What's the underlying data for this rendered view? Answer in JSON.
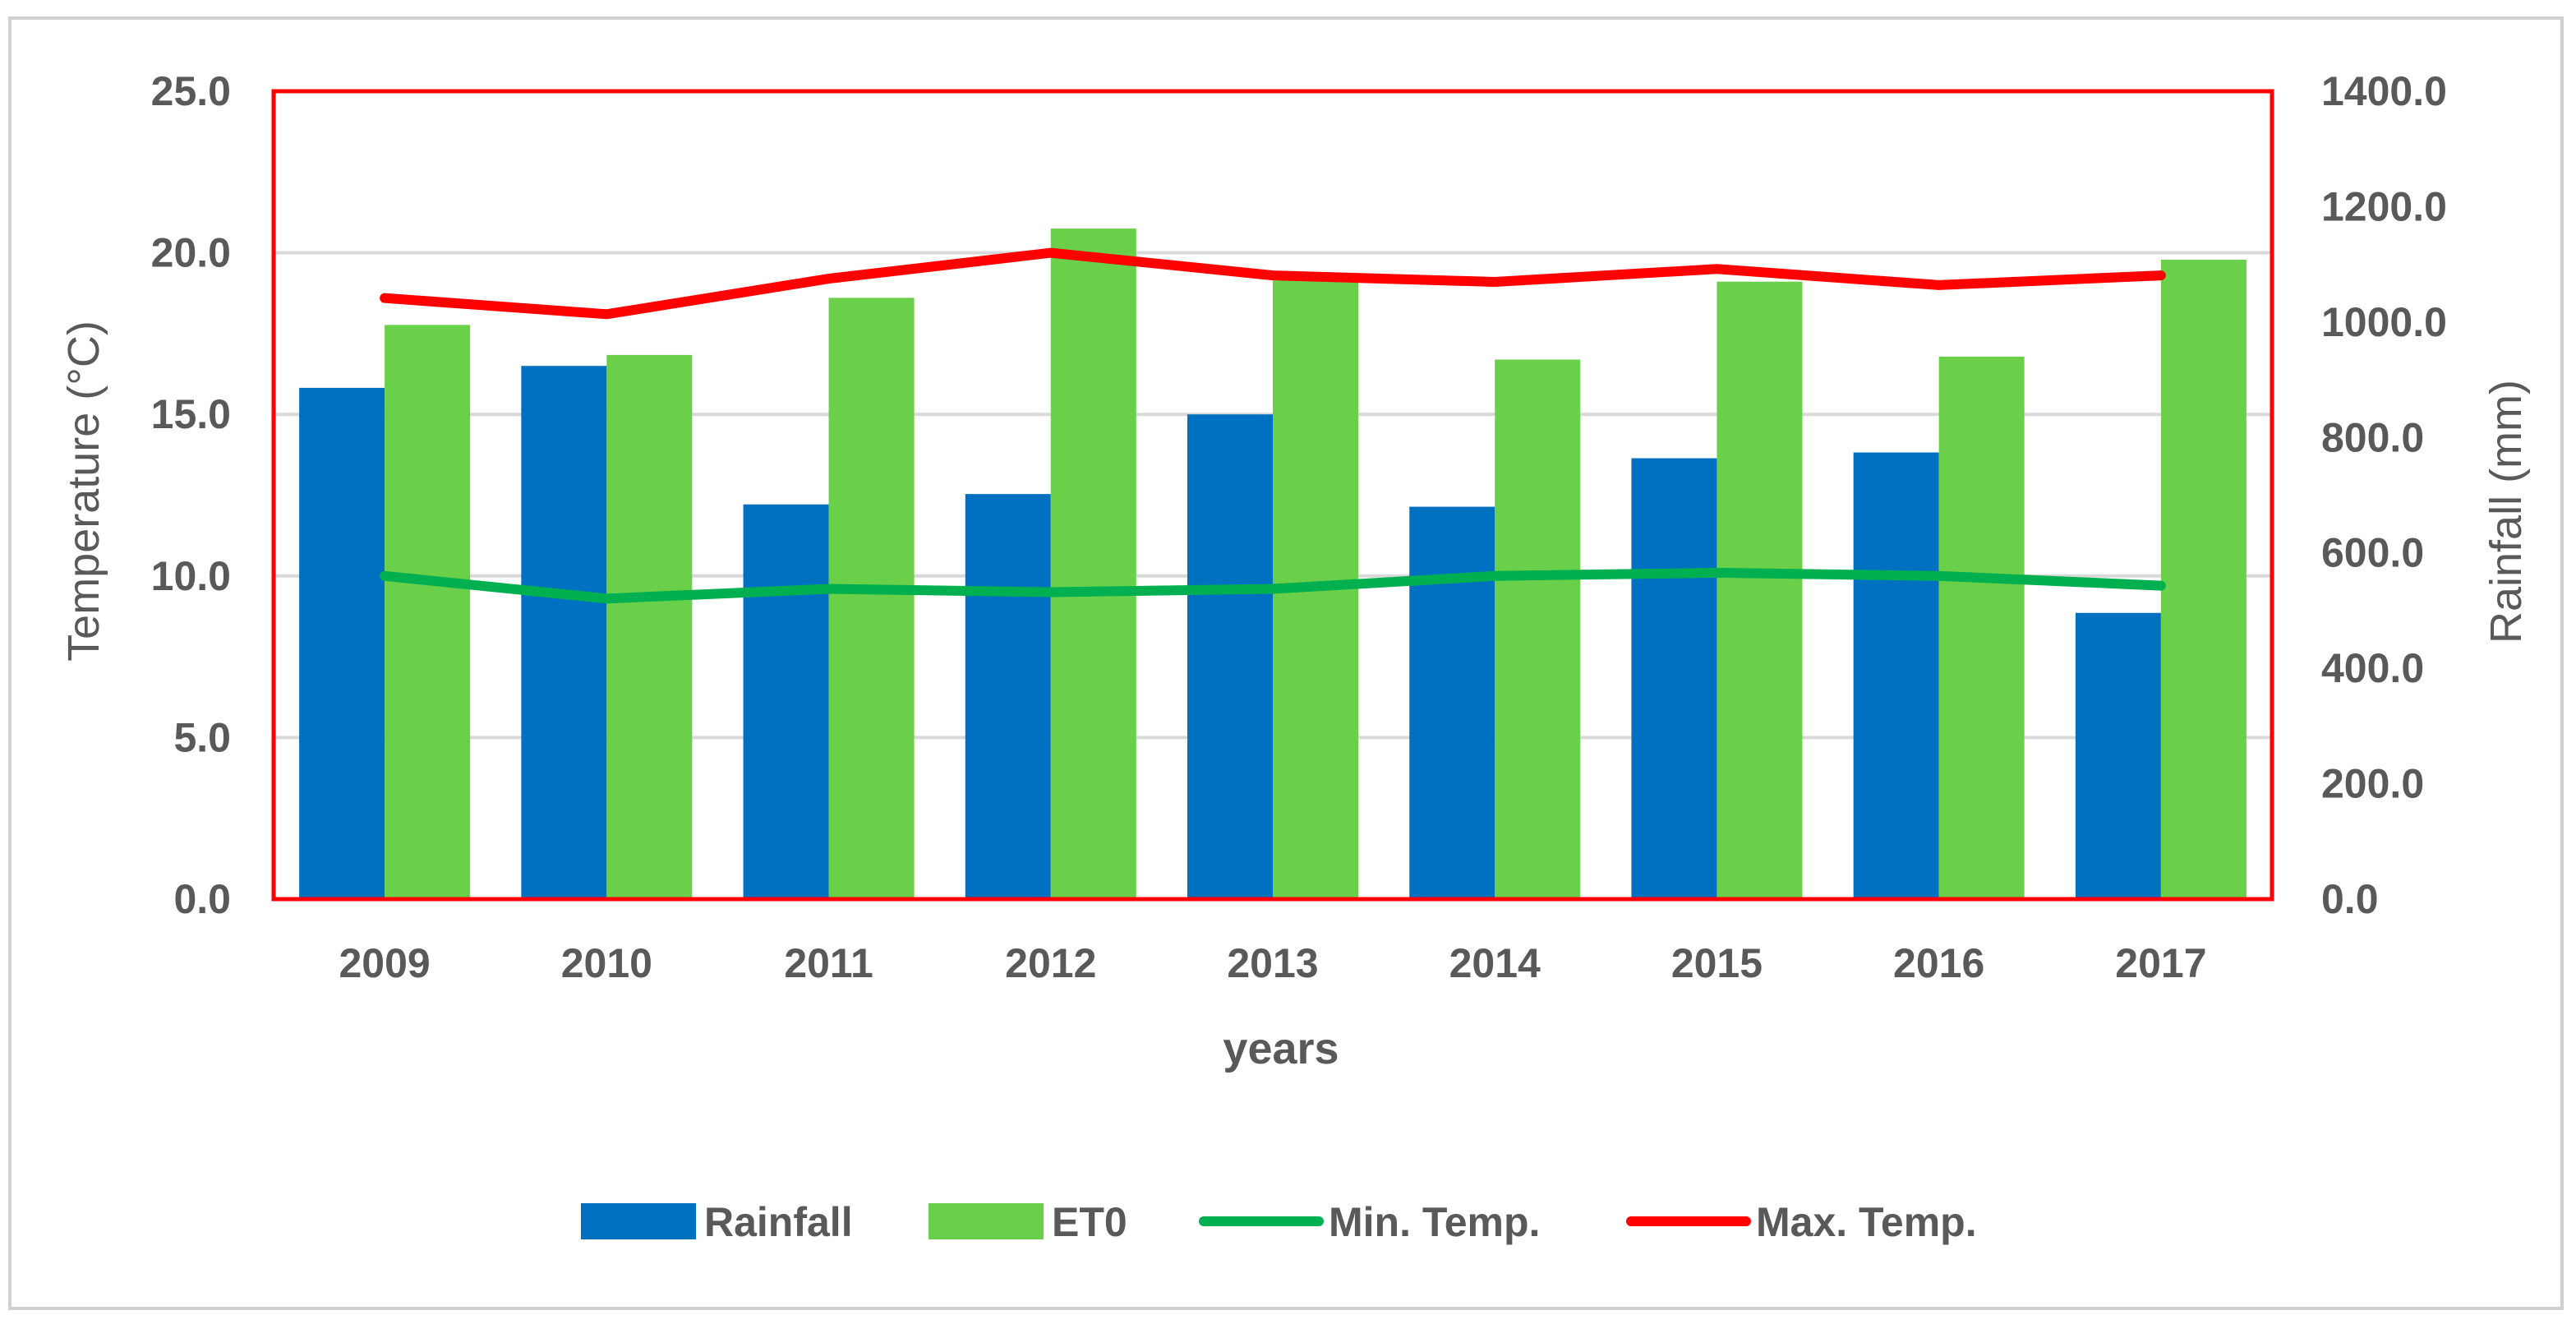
{
  "chart_data": {
    "type": "bar",
    "categories": [
      "2009",
      "2010",
      "2011",
      "2012",
      "2013",
      "2014",
      "2015",
      "2016",
      "2017"
    ],
    "series": [
      {
        "name": "Rainfall",
        "kind": "bar",
        "axis": "right",
        "color": "#0070c0",
        "values": [
          886,
          924,
          684,
          702,
          840,
          680,
          764,
          774,
          496
        ]
      },
      {
        "name": "ET0",
        "kind": "bar",
        "axis": "right",
        "color": "#6ad04a",
        "values": [
          995,
          943,
          1042,
          1162,
          1072,
          935,
          1070,
          940,
          1108
        ]
      },
      {
        "name": "Min. Temp.",
        "kind": "line",
        "axis": "left",
        "color": "#00b050",
        "values": [
          10.0,
          9.3,
          9.6,
          9.5,
          9.6,
          10.0,
          10.1,
          10.0,
          9.7
        ]
      },
      {
        "name": "Max. Temp.",
        "kind": "line",
        "axis": "left",
        "color": "#ff0000",
        "values": [
          18.6,
          18.1,
          19.2,
          20.0,
          19.3,
          19.1,
          19.5,
          19.0,
          19.3
        ]
      }
    ],
    "xlabel": "years",
    "ylabel": "Temperature (°C)",
    "y2label": "Rainfall (mm)",
    "ylim": [
      0,
      25
    ],
    "y2lim": [
      0,
      1400
    ],
    "yticks": [
      "0.0",
      "5.0",
      "10.0",
      "15.0",
      "20.0",
      "25.0"
    ],
    "y2ticks": [
      "0.0",
      "200.0",
      "400.0",
      "600.0",
      "800.0",
      "1000.0",
      "1200.0",
      "1400.0"
    ],
    "grid": true,
    "legend_position": "bottom",
    "plot_border_color": "#ff0000",
    "gridline_color": "#d9d9d9"
  }
}
